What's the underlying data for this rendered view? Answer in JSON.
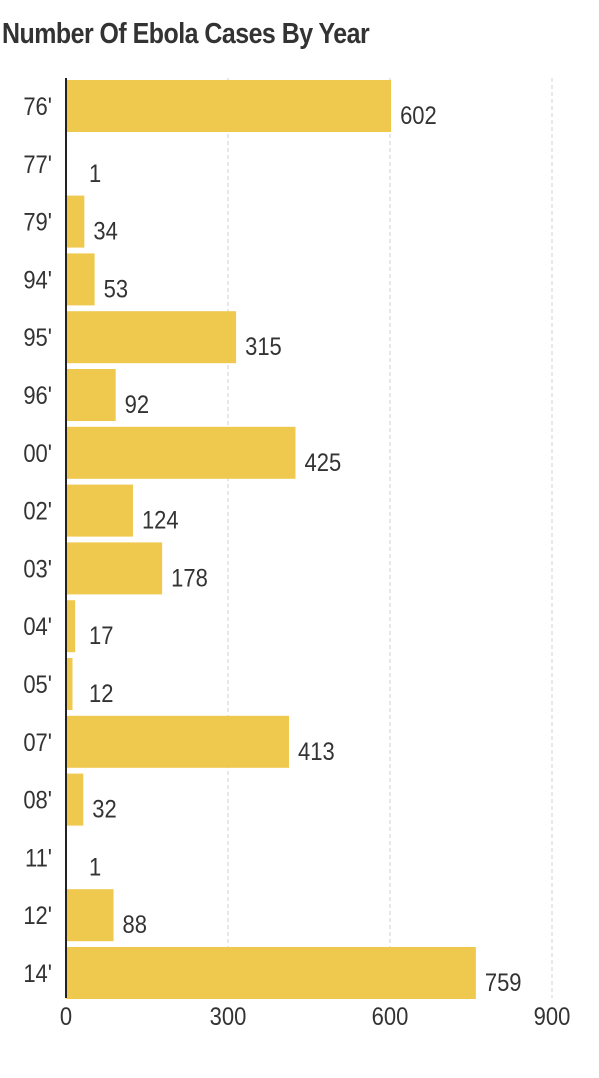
{
  "title": "Number Of Ebola Cases By Year",
  "colors": {
    "bar": "#efc84e",
    "axis": "#222222",
    "grid": "#d0d0d0",
    "text": "#333333"
  },
  "chart_data": {
    "type": "bar",
    "orientation": "horizontal",
    "title": "Number Of Ebola Cases By Year",
    "xlabel": "",
    "ylabel": "",
    "categories": [
      "76'",
      "77'",
      "79'",
      "94'",
      "95'",
      "96'",
      "00'",
      "02'",
      "03'",
      "04'",
      "05'",
      "07'",
      "08'",
      "11'",
      "12'",
      "14'"
    ],
    "values": [
      602,
      1,
      34,
      53,
      315,
      92,
      425,
      124,
      178,
      17,
      12,
      413,
      32,
      1,
      88,
      759
    ],
    "xlim": [
      0,
      900
    ],
    "xticks": [
      0,
      300,
      600,
      900
    ],
    "grid": "vertical dashed",
    "legend": "none",
    "data_labels": true
  }
}
